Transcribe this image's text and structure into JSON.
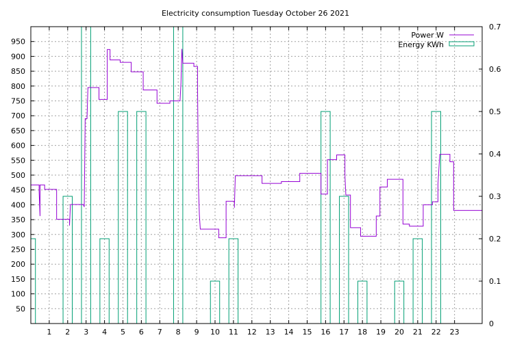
{
  "chart_data": {
    "type": "line",
    "title": "Electricity consumption Tuesday October 26 2021",
    "xlim": [
      0,
      24.5
    ],
    "xticks": [
      1,
      2,
      3,
      4,
      5,
      6,
      7,
      8,
      9,
      10,
      11,
      12,
      13,
      14,
      15,
      16,
      17,
      18,
      19,
      20,
      21,
      22,
      23
    ],
    "ylim": [
      0,
      1000
    ],
    "yticks": [
      50,
      100,
      150,
      200,
      250,
      300,
      350,
      400,
      450,
      500,
      550,
      600,
      650,
      700,
      750,
      800,
      850,
      900,
      950
    ],
    "y2lim": [
      0,
      0.7
    ],
    "y2ticks": [
      0,
      0.1,
      0.2,
      0.3,
      0.4,
      0.5,
      0.6,
      0.7
    ],
    "y2tick_labels": [
      "0",
      "0.1",
      "0.2",
      "0.3",
      "0.4",
      "0.5",
      "0.6",
      "0.7"
    ],
    "grid": true,
    "legend_position": "top-right",
    "colors": {
      "power": "#9400d3",
      "energy": "#009e73"
    },
    "series": [
      {
        "name": "Power W",
        "axis": "y",
        "style": "step",
        "points": [
          [
            0,
            467
          ],
          [
            0.45,
            467
          ],
          [
            0.45,
            445
          ],
          [
            0.5,
            362
          ],
          [
            0.5,
            467
          ],
          [
            0.75,
            467
          ],
          [
            0.75,
            452
          ],
          [
            1.4,
            452
          ],
          [
            1.4,
            351
          ],
          [
            2.1,
            351
          ],
          [
            2.1,
            330
          ],
          [
            2.15,
            401
          ],
          [
            2.85,
            401
          ],
          [
            2.9,
            393
          ],
          [
            2.95,
            690
          ],
          [
            3.05,
            690
          ],
          [
            3.1,
            795
          ],
          [
            3.7,
            795
          ],
          [
            3.7,
            755
          ],
          [
            4.15,
            755
          ],
          [
            4.15,
            923
          ],
          [
            4.3,
            923
          ],
          [
            4.3,
            888
          ],
          [
            4.85,
            888
          ],
          [
            4.85,
            880
          ],
          [
            5.45,
            880
          ],
          [
            5.45,
            848
          ],
          [
            6.1,
            848
          ],
          [
            6.1,
            787
          ],
          [
            6.85,
            787
          ],
          [
            6.85,
            742
          ],
          [
            7.55,
            742
          ],
          [
            7.55,
            750
          ],
          [
            8.1,
            750
          ],
          [
            8.15,
            810
          ],
          [
            8.2,
            925
          ],
          [
            8.25,
            877
          ],
          [
            8.85,
            877
          ],
          [
            8.85,
            866
          ],
          [
            9.05,
            866
          ],
          [
            9.05,
            800
          ],
          [
            9.1,
            460
          ],
          [
            9.15,
            365
          ],
          [
            9.2,
            318
          ],
          [
            10.2,
            318
          ],
          [
            10.2,
            289
          ],
          [
            10.6,
            289
          ],
          [
            10.6,
            412
          ],
          [
            11.05,
            412
          ],
          [
            11.05,
            390
          ],
          [
            11.1,
            498
          ],
          [
            12.55,
            498
          ],
          [
            12.55,
            472
          ],
          [
            13.6,
            472
          ],
          [
            13.6,
            478
          ],
          [
            14.6,
            478
          ],
          [
            14.6,
            506
          ],
          [
            15.75,
            506
          ],
          [
            15.75,
            436
          ],
          [
            16.1,
            436
          ],
          [
            16.1,
            552
          ],
          [
            16.6,
            552
          ],
          [
            16.6,
            568
          ],
          [
            17.05,
            568
          ],
          [
            17.05,
            500
          ],
          [
            17.1,
            433
          ],
          [
            17.35,
            433
          ],
          [
            17.35,
            323
          ],
          [
            17.9,
            323
          ],
          [
            17.9,
            294
          ],
          [
            18.75,
            294
          ],
          [
            18.75,
            362
          ],
          [
            18.95,
            362
          ],
          [
            18.95,
            460
          ],
          [
            19.35,
            460
          ],
          [
            19.35,
            486
          ],
          [
            20.2,
            486
          ],
          [
            20.2,
            335
          ],
          [
            20.55,
            335
          ],
          [
            20.55,
            328
          ],
          [
            21.3,
            328
          ],
          [
            21.3,
            400
          ],
          [
            21.8,
            400
          ],
          [
            21.8,
            410
          ],
          [
            22.1,
            410
          ],
          [
            22.1,
            470
          ],
          [
            22.2,
            570
          ],
          [
            22.75,
            570
          ],
          [
            22.75,
            545
          ],
          [
            22.95,
            545
          ],
          [
            22.95,
            381
          ],
          [
            24.5,
            381
          ]
        ]
      },
      {
        "name": "Energy KWh",
        "axis": "y2",
        "style": "boxes",
        "width": 0.5,
        "bars": [
          [
            0,
            0.2
          ],
          [
            2,
            0.3
          ],
          [
            3,
            0.7
          ],
          [
            4,
            0.2
          ],
          [
            5,
            0.5
          ],
          [
            6,
            0.5
          ],
          [
            8,
            0.7
          ],
          [
            10,
            0.1
          ],
          [
            11,
            0.2
          ],
          [
            16,
            0.5
          ],
          [
            17,
            0.3
          ],
          [
            18,
            0.1
          ],
          [
            20,
            0.1
          ],
          [
            21,
            0.2
          ],
          [
            22,
            0.5
          ]
        ]
      }
    ]
  }
}
